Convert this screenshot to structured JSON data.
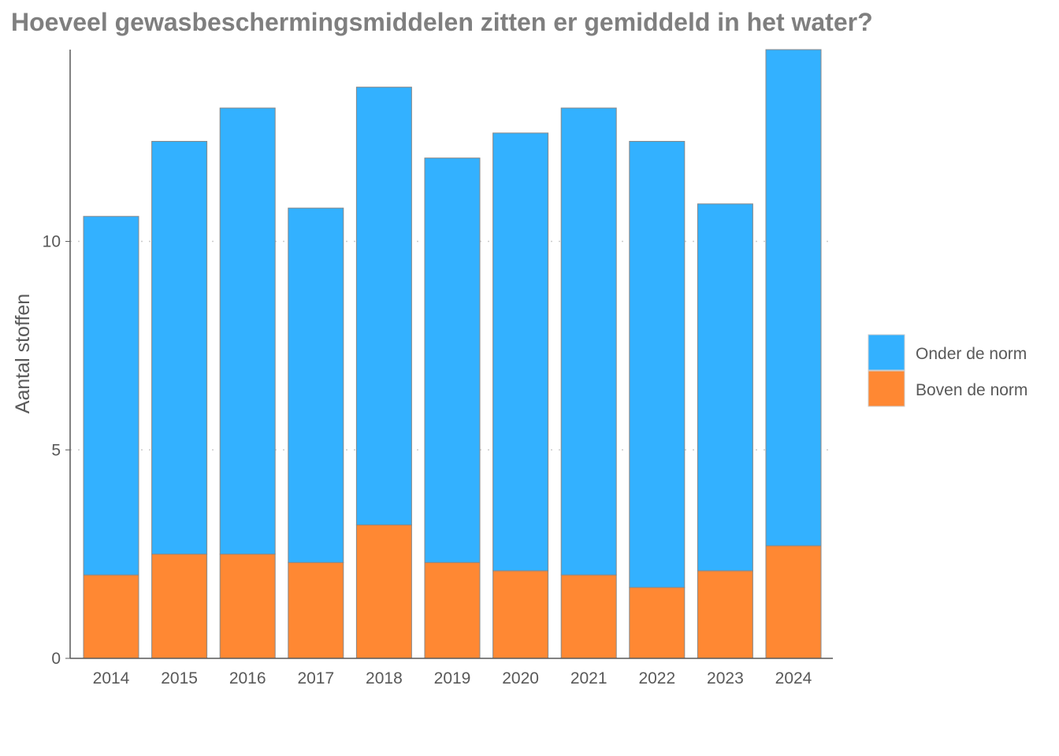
{
  "chart_data": {
    "type": "bar",
    "stacked": true,
    "title": "Hoeveel gewasbeschermingsmiddelen zitten er gemiddeld in het water?",
    "xlabel": "",
    "ylabel": "Aantal stoffen",
    "ylim": [
      0,
      14.6
    ],
    "yticks": [
      0,
      5,
      10
    ],
    "grid": "horizontal dotted",
    "legend_position": "right",
    "categories": [
      "2014",
      "2015",
      "2016",
      "2017",
      "2018",
      "2019",
      "2020",
      "2021",
      "2022",
      "2023",
      "2024"
    ],
    "series": [
      {
        "name": "Boven de norm",
        "color": "#FF8833",
        "values": [
          2.0,
          2.5,
          2.5,
          2.3,
          3.2,
          2.3,
          2.1,
          2.0,
          1.7,
          2.1,
          2.7
        ]
      },
      {
        "name": "Onder de norm",
        "color": "#33B1FF",
        "values": [
          8.6,
          9.9,
          10.7,
          8.5,
          10.5,
          9.7,
          10.5,
          11.2,
          10.7,
          8.8,
          11.9
        ]
      }
    ],
    "legend_order": [
      "Onder de norm",
      "Boven de norm"
    ]
  }
}
